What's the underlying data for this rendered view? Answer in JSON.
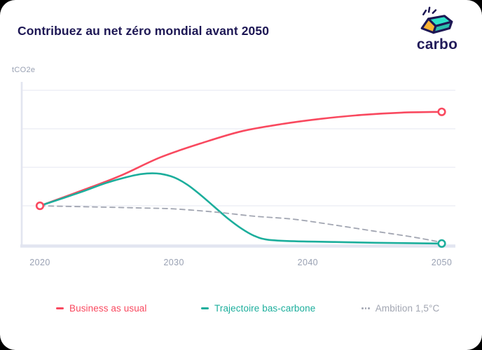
{
  "header": {
    "title": "Contribuez au net zéro mondial avant 2050"
  },
  "brand": {
    "name": "carbo",
    "icon": "carbo-gem-logo",
    "navy": "#1d1754",
    "gem_top_teal": "#2fe2c8",
    "gem_front_teal": "#2bbfad",
    "gem_left_yellow": "#f9b233"
  },
  "chart_data": {
    "type": "line",
    "title": "Contribuez au net zéro mondial avant 2050",
    "xlabel": "",
    "ylabel": "tCO2e",
    "x_ticks": [
      2020,
      2030,
      2040,
      2050
    ],
    "xlim": [
      2020,
      2050
    ],
    "ylim": [
      0,
      4.2
    ],
    "grid": true,
    "y_gridline_values": [
      1,
      2,
      3,
      4
    ],
    "legend_position": "bottom",
    "colors": {
      "gridline": "#eaecf4",
      "axis": "#e2e5f0",
      "tick_label": "#99a1b3"
    },
    "series": [
      {
        "name": "Business as usual",
        "color": "#f9495f",
        "style": "solid",
        "markers": [
          "start",
          "end"
        ],
        "points": [
          [
            2020,
            1.0
          ],
          [
            2023,
            1.38
          ],
          [
            2026,
            1.78
          ],
          [
            2029,
            2.26
          ],
          [
            2032,
            2.62
          ],
          [
            2035,
            2.93
          ],
          [
            2038,
            3.12
          ],
          [
            2041,
            3.26
          ],
          [
            2044,
            3.36
          ],
          [
            2047,
            3.42
          ],
          [
            2050,
            3.44
          ]
        ]
      },
      {
        "name": "Trajectoire bas-carbone",
        "color": "#1cae9c",
        "style": "solid",
        "markers": [
          "end"
        ],
        "points": [
          [
            2020,
            1.0
          ],
          [
            2023,
            1.35
          ],
          [
            2025,
            1.6
          ],
          [
            2027,
            1.79
          ],
          [
            2028,
            1.84
          ],
          [
            2029,
            1.83
          ],
          [
            2030,
            1.74
          ],
          [
            2031,
            1.55
          ],
          [
            2032,
            1.28
          ],
          [
            2033,
            0.98
          ],
          [
            2034,
            0.68
          ],
          [
            2035,
            0.42
          ],
          [
            2036,
            0.22
          ],
          [
            2037,
            0.12
          ],
          [
            2039,
            0.08
          ],
          [
            2042,
            0.06
          ],
          [
            2045,
            0.04
          ],
          [
            2050,
            0.02
          ]
        ]
      },
      {
        "name": "Ambition 1,5°C",
        "color": "#a2a6b2",
        "style": "dashed",
        "markers": [],
        "points": [
          [
            2020,
            1.0
          ],
          [
            2024,
            0.97
          ],
          [
            2028,
            0.94
          ],
          [
            2030,
            0.92
          ],
          [
            2033,
            0.84
          ],
          [
            2036,
            0.73
          ],
          [
            2039,
            0.65
          ],
          [
            2042,
            0.5
          ],
          [
            2045,
            0.34
          ],
          [
            2048,
            0.18
          ],
          [
            2050,
            0.05
          ]
        ]
      }
    ]
  }
}
